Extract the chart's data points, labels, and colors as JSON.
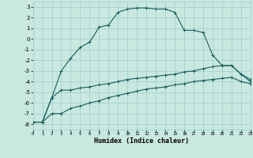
{
  "xlabel": "Humidex (Indice chaleur)",
  "xlim": [
    0,
    23
  ],
  "ylim": [
    -8.5,
    3.5
  ],
  "yticks": [
    -8,
    -7,
    -6,
    -5,
    -4,
    -3,
    -2,
    -1,
    0,
    1,
    2,
    3
  ],
  "xticks": [
    0,
    1,
    2,
    3,
    4,
    5,
    6,
    7,
    8,
    9,
    10,
    11,
    12,
    13,
    14,
    15,
    16,
    17,
    18,
    19,
    20,
    21,
    22,
    23
  ],
  "bg_color": "#c8e8e0",
  "line_color": "#1a5c5c",
  "grid_color": "#9ecece",
  "curve1_x": [
    0,
    1,
    2,
    3,
    4,
    5,
    6,
    7,
    8,
    9,
    10,
    11,
    12,
    13,
    14,
    15,
    16,
    17,
    18,
    19,
    20,
    21,
    22,
    23
  ],
  "curve1_y": [
    -7.8,
    -7.8,
    -5.5,
    -3.0,
    -1.8,
    -0.8,
    -0.3,
    1.1,
    1.3,
    2.5,
    2.8,
    2.9,
    2.9,
    2.8,
    2.8,
    2.5,
    0.8,
    0.8,
    0.6,
    -1.5,
    -2.5,
    -2.5,
    -3.3,
    -3.8
  ],
  "curve2_x": [
    0,
    1,
    2,
    3,
    4,
    5,
    6,
    7,
    8,
    9,
    10,
    11,
    12,
    13,
    14,
    15,
    16,
    17,
    18,
    19,
    20,
    21,
    22,
    23
  ],
  "curve2_y": [
    -7.8,
    -7.8,
    -5.5,
    -4.8,
    -4.8,
    -4.6,
    -4.5,
    -4.3,
    -4.2,
    -4.0,
    -3.8,
    -3.7,
    -3.6,
    -3.5,
    -3.4,
    -3.3,
    -3.1,
    -3.0,
    -2.8,
    -2.6,
    -2.5,
    -2.5,
    -3.3,
    -4.0
  ],
  "curve3_x": [
    0,
    1,
    2,
    3,
    4,
    5,
    6,
    7,
    8,
    9,
    10,
    11,
    12,
    13,
    14,
    15,
    16,
    17,
    18,
    19,
    20,
    21,
    22,
    23
  ],
  "curve3_y": [
    -7.8,
    -7.8,
    -7.0,
    -7.0,
    -6.5,
    -6.3,
    -6.0,
    -5.8,
    -5.5,
    -5.3,
    -5.1,
    -4.9,
    -4.7,
    -4.6,
    -4.5,
    -4.3,
    -4.2,
    -4.0,
    -3.9,
    -3.8,
    -3.7,
    -3.6,
    -4.0,
    -4.2
  ]
}
